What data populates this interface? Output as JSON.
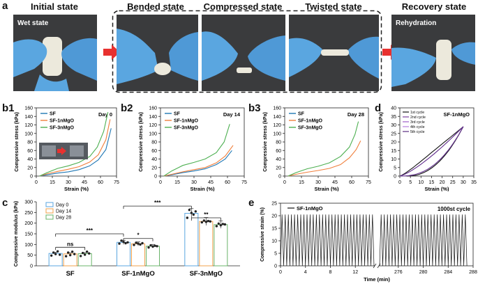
{
  "panel_a": {
    "label": "a",
    "states": [
      {
        "title": "Initial state",
        "photo_label": "Wet state"
      },
      {
        "title": "Bended state",
        "photo_label": ""
      },
      {
        "title": "Compressed state",
        "photo_label": ""
      },
      {
        "title": "Twisted state",
        "photo_label": ""
      },
      {
        "title": "Recovery state",
        "photo_label": "Rehydration"
      }
    ],
    "colors": {
      "glove": "#5aa6e0",
      "sample": "#ece9dc",
      "background": "#3a3b3d",
      "arrow": "#e8312f"
    }
  },
  "chart_data": [
    {
      "panel": "b1",
      "type": "line",
      "title": "Day 0",
      "xlabel": "Strain (%)",
      "ylabel": "Compressive stress (kPa)",
      "xlim": [
        0,
        75
      ],
      "ylim": [
        0,
        160
      ],
      "xticks": [
        0,
        15,
        30,
        45,
        60,
        75
      ],
      "yticks": [
        0,
        20,
        40,
        60,
        80,
        100,
        120,
        140,
        160
      ],
      "legend": "top-left",
      "series": [
        {
          "name": "SF",
          "color": "#1f77b4",
          "points": [
            [
              3,
              0
            ],
            [
              10,
              3
            ],
            [
              20,
              7
            ],
            [
              30,
              10
            ],
            [
              40,
              15
            ],
            [
              50,
              24
            ],
            [
              58,
              38
            ],
            [
              65,
              62
            ],
            [
              70,
              112
            ]
          ]
        },
        {
          "name": "SF-1nMgO",
          "color": "#f07f3c",
          "points": [
            [
              3,
              0
            ],
            [
              10,
              5
            ],
            [
              20,
              11
            ],
            [
              30,
              16
            ],
            [
              40,
              22
            ],
            [
              50,
              33
            ],
            [
              58,
              50
            ],
            [
              65,
              85
            ],
            [
              69,
              133
            ]
          ]
        },
        {
          "name": "SF-3nMgO",
          "color": "#4caf50",
          "points": [
            [
              3,
              0
            ],
            [
              10,
              8
            ],
            [
              20,
              18
            ],
            [
              30,
              24
            ],
            [
              40,
              32
            ],
            [
              50,
              46
            ],
            [
              57,
              68
            ],
            [
              63,
              105
            ],
            [
              67,
              150
            ]
          ]
        }
      ]
    },
    {
      "panel": "b2",
      "type": "line",
      "title": "Day 14",
      "xlabel": "Strain (%)",
      "ylabel": "Compressive stress (kPa)",
      "xlim": [
        0,
        75
      ],
      "ylim": [
        0,
        160
      ],
      "xticks": [
        0,
        15,
        30,
        45,
        60,
        75
      ],
      "yticks": [
        0,
        20,
        40,
        60,
        80,
        100,
        120,
        140,
        160
      ],
      "legend": "top-left",
      "series": [
        {
          "name": "SF",
          "color": "#1f77b4",
          "points": [
            [
              3,
              0
            ],
            [
              10,
              3
            ],
            [
              20,
              8
            ],
            [
              30,
              12
            ],
            [
              40,
              17
            ],
            [
              50,
              27
            ],
            [
              58,
              40
            ],
            [
              64,
              60
            ]
          ]
        },
        {
          "name": "SF-1nMgO",
          "color": "#f07f3c",
          "points": [
            [
              3,
              0
            ],
            [
              10,
              4
            ],
            [
              20,
              10
            ],
            [
              30,
              15
            ],
            [
              40,
              20
            ],
            [
              50,
              31
            ],
            [
              58,
              47
            ],
            [
              65,
              72
            ]
          ]
        },
        {
          "name": "SF-3nMgO",
          "color": "#4caf50",
          "points": [
            [
              3,
              0
            ],
            [
              10,
              12
            ],
            [
              20,
              25
            ],
            [
              30,
              32
            ],
            [
              40,
              40
            ],
            [
              50,
              55
            ],
            [
              57,
              80
            ],
            [
              62,
              122
            ]
          ]
        }
      ]
    },
    {
      "panel": "b3",
      "type": "line",
      "title": "Day 28",
      "xlabel": "Strain (%)",
      "ylabel": "Compressive stress (kPa)",
      "xlim": [
        0,
        75
      ],
      "ylim": [
        0,
        160
      ],
      "xticks": [
        0,
        15,
        30,
        45,
        60,
        75
      ],
      "yticks": [
        0,
        20,
        40,
        60,
        80,
        100,
        120,
        140,
        160
      ],
      "legend": "top-left",
      "series": [
        {
          "name": "SF",
          "color": "#1f77b4",
          "points": []
        },
        {
          "name": "SF-1nMgO",
          "color": "#f07f3c",
          "points": [
            [
              3,
              0
            ],
            [
              10,
              4
            ],
            [
              20,
              9
            ],
            [
              30,
              13
            ],
            [
              40,
              18
            ],
            [
              50,
              27
            ],
            [
              58,
              43
            ],
            [
              64,
              62
            ],
            [
              68,
              83
            ]
          ]
        },
        {
          "name": "SF-3nMgO",
          "color": "#4caf50",
          "points": [
            [
              3,
              0
            ],
            [
              10,
              8
            ],
            [
              20,
              17
            ],
            [
              30,
              23
            ],
            [
              40,
              31
            ],
            [
              50,
              46
            ],
            [
              58,
              68
            ],
            [
              63,
              98
            ],
            [
              66,
              128
            ]
          ]
        }
      ]
    },
    {
      "panel": "d",
      "type": "line",
      "title": "SF-1nMgO",
      "xlabel": "Strain (%)",
      "ylabel": "Compressive stress (kPa)",
      "xlim": [
        0,
        35
      ],
      "ylim": [
        0,
        40
      ],
      "xticks": [
        0,
        5,
        10,
        15,
        20,
        25,
        30,
        35
      ],
      "yticks": [
        0,
        5,
        10,
        15,
        20,
        25,
        30,
        35,
        40
      ],
      "legend": "top-left",
      "series": [
        {
          "name": "1st cycle",
          "color": "#111111",
          "offset": 0.8
        },
        {
          "name": "2nd cycle",
          "color": "#7b3fa0",
          "offset": 0
        },
        {
          "name": "3rd cycle",
          "color": "#9c5cc8",
          "offset": 0
        },
        {
          "name": "4th cycle",
          "color": "#b57de0",
          "offset": 0
        },
        {
          "name": "5th cycle",
          "color": "#5a2d82",
          "offset": 0
        }
      ]
    },
    {
      "panel": "c",
      "type": "bar",
      "ylabel": "Compressive modulus (kPa)",
      "ylim": [
        0,
        300
      ],
      "yticks": [
        0,
        50,
        100,
        150,
        200,
        250,
        300
      ],
      "categories": [
        "SF",
        "SF-1nMgO",
        "SF-3nMgO"
      ],
      "legend": "top-left",
      "series": [
        {
          "name": "Day 0",
          "color": "#5aa6e0",
          "values": [
            58,
            110,
            246
          ],
          "points": [
            [
              48,
              62,
              55,
              68,
              52
            ],
            [
              104,
              118,
              112,
              106,
              110
            ],
            [
              225,
              262,
              248,
              240,
              255
            ]
          ]
        },
        {
          "name": "Day 14",
          "color": "#f0a04b",
          "values": [
            56,
            103,
            208
          ],
          "points": [
            [
              45,
              62,
              50,
              66,
              55
            ],
            [
              98,
              108,
              104,
              100,
              106
            ],
            [
              204,
              212,
              206,
              210,
              208
            ]
          ]
        },
        {
          "name": "Day 28",
          "color": "#6ab46a",
          "values": [
            57,
            92,
            193
          ],
          "points": [
            [
              46,
              60,
              52,
              66,
              58
            ],
            [
              86,
              96,
              90,
              94,
              92
            ],
            [
              186,
              198,
              190,
              196,
              194
            ]
          ]
        }
      ],
      "annotations": [
        {
          "text": "ns",
          "from": 0,
          "to": 2,
          "level": 87
        },
        {
          "text": "***",
          "from": 0,
          "to": 3,
          "level": 150
        },
        {
          "text": "*",
          "from": 3,
          "to": 5,
          "level": 128
        },
        {
          "text": "***",
          "from": 3,
          "to": 6,
          "level": 280
        },
        {
          "text": "**",
          "from": 6,
          "to": 8,
          "level": 225
        }
      ]
    },
    {
      "panel": "e",
      "type": "line",
      "title": "1000st cycle",
      "series_name": "SF-1nMgO",
      "xlabel": "Time (min)",
      "ylabel": "Compressive strain (%)",
      "ylim": [
        0,
        25
      ],
      "yticks": [
        0,
        5,
        10,
        15,
        20,
        25
      ],
      "x_segment1_ticks": [
        0,
        4,
        8,
        12
      ],
      "x_segment1_range": [
        0,
        15
      ],
      "x_segment2_ticks": [
        276,
        280,
        284,
        288
      ],
      "x_segment2_range": [
        273,
        288
      ],
      "amplitude": 20.5,
      "period_min": 0.5
    }
  ],
  "labels": {
    "b1": "b1",
    "b2": "b2",
    "b3": "b3",
    "c": "c",
    "d": "d",
    "e": "e"
  },
  "inset_b1": {
    "arrow_color": "#e8312f"
  }
}
